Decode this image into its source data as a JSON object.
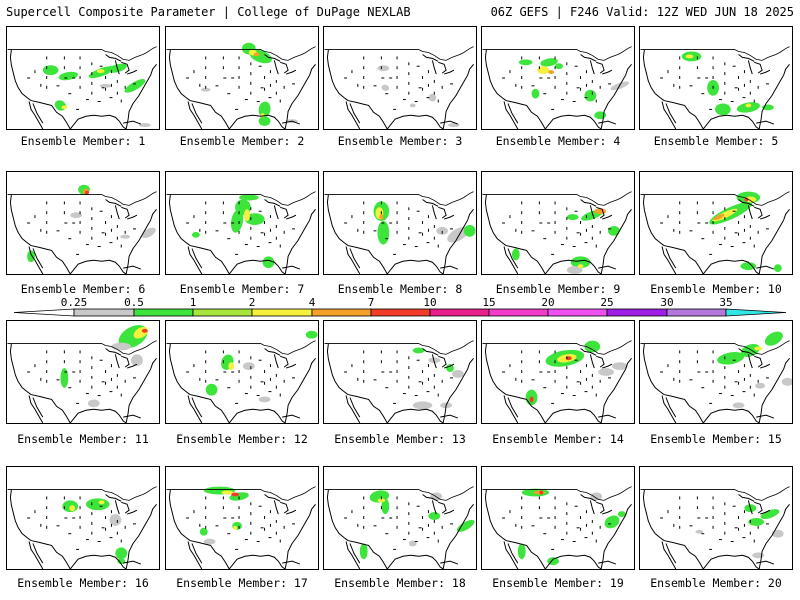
{
  "header": {
    "title": "Supercell Composite Parameter | College of DuPage NEXLAB",
    "run_info": "06Z GEFS | F246 Valid: 12Z WED JUN 18 2025"
  },
  "legend": {
    "thresholds": [
      "0.25",
      "0.5",
      "1",
      "2",
      "4",
      "7",
      "10",
      "15",
      "20",
      "25",
      "30",
      "35"
    ],
    "colors": [
      "#c8c8c8",
      "#3ce43c",
      "#a8e63c",
      "#f5f03c",
      "#f5a028",
      "#f03c28",
      "#e81e8c",
      "#f03cc8",
      "#f050f0",
      "#a01ee6",
      "#b478dc",
      "#32e6e6"
    ],
    "outline_color": "#000000"
  },
  "members": [
    {
      "label": "Ensemble Member: 1"
    },
    {
      "label": "Ensemble Member: 2"
    },
    {
      "label": "Ensemble Member: 3"
    },
    {
      "label": "Ensemble Member: 4"
    },
    {
      "label": "Ensemble Member: 5"
    },
    {
      "label": "Ensemble Member: 6"
    },
    {
      "label": "Ensemble Member: 7"
    },
    {
      "label": "Ensemble Member: 8"
    },
    {
      "label": "Ensemble Member: 9"
    },
    {
      "label": "Ensemble Member: 10"
    },
    {
      "label": "Ensemble Member: 11"
    },
    {
      "label": "Ensemble Member: 12"
    },
    {
      "label": "Ensemble Member: 13"
    },
    {
      "label": "Ensemble Member: 14"
    },
    {
      "label": "Ensemble Member: 15"
    },
    {
      "label": "Ensemble Member: 16"
    },
    {
      "label": "Ensemble Member: 17"
    },
    {
      "label": "Ensemble Member: 18"
    },
    {
      "label": "Ensemble Member: 19"
    },
    {
      "label": "Ensemble Member: 20"
    }
  ]
}
